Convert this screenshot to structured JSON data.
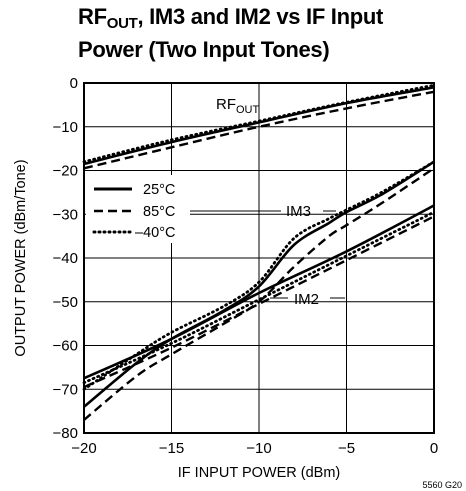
{
  "title": {
    "prefix": "RF",
    "sub": "OUT",
    "line1_rest": ", IM3 and IM2 vs IF Input",
    "line2": "Power (Two Input Tones)"
  },
  "figure_code": "5560 G20",
  "chart_data": {
    "type": "line",
    "xlabel": "IF INPUT POWER (dBm)",
    "ylabel": "OUTPUT POWER (dBm/Tone)",
    "xlim": [
      -20,
      0
    ],
    "ylim": [
      -80,
      0
    ],
    "x_ticks": [
      -20,
      -15,
      -10,
      -5,
      0
    ],
    "y_ticks": [
      0,
      -10,
      -20,
      -30,
      -40,
      -50,
      -60,
      -70,
      -80
    ],
    "grid": true,
    "legend": {
      "placement": "left-middle",
      "entries": [
        {
          "label": "25°C",
          "style": "solid"
        },
        {
          "label": "85°C",
          "style": "dashed"
        },
        {
          "label": "–40°C",
          "style": "dotted"
        }
      ]
    },
    "annotations": [
      {
        "text_prefix": "RF",
        "text_sub": "OUT"
      },
      {
        "text": "IM3"
      },
      {
        "text": "IM2"
      }
    ],
    "series": [
      {
        "group": "RFOUT",
        "temp": "25°C",
        "style": "solid",
        "x": [
          -20,
          -15,
          -10,
          -5,
          0
        ],
        "y": [
          -18.5,
          -13.5,
          -9,
          -4.6,
          -1
        ]
      },
      {
        "group": "RFOUT",
        "temp": "85°C",
        "style": "dashed",
        "x": [
          -20,
          -15,
          -10,
          -5,
          0
        ],
        "y": [
          -19.5,
          -14.7,
          -10,
          -5.8,
          -2
        ]
      },
      {
        "group": "RFOUT",
        "temp": "–40°C",
        "style": "dotted",
        "x": [
          -20,
          -15,
          -10,
          -5,
          0
        ],
        "y": [
          -18,
          -13,
          -8.7,
          -4.4,
          -0.5
        ]
      },
      {
        "group": "IM3",
        "temp": "25°C",
        "style": "solid",
        "x": [
          -20,
          -17,
          -15,
          -12,
          -10,
          -8,
          -6,
          -5,
          -3,
          0
        ],
        "y": [
          -74,
          -64,
          -58.5,
          -52,
          -46.5,
          -37,
          -32,
          -29.5,
          -25.5,
          -18
        ]
      },
      {
        "group": "IM3",
        "temp": "85°C",
        "style": "dashed",
        "x": [
          -20,
          -17,
          -15,
          -12,
          -10,
          -8,
          -6,
          -5,
          -3,
          0
        ],
        "y": [
          -77,
          -67,
          -62,
          -55,
          -50,
          -42,
          -35,
          -32.5,
          -27.5,
          -19.5
        ]
      },
      {
        "group": "IM3",
        "temp": "–40°C",
        "style": "dotted",
        "x": [
          -20,
          -17,
          -15,
          -12,
          -10,
          -8,
          -6,
          -5,
          -3,
          0
        ],
        "y": [
          -70,
          -62,
          -57,
          -51,
          -45.5,
          -35.5,
          -31,
          -29,
          -25,
          -18
        ]
      },
      {
        "group": "IM2",
        "temp": "25°C",
        "style": "solid",
        "x": [
          -20,
          -15,
          -10,
          -5,
          0
        ],
        "y": [
          -67.5,
          -58.5,
          -48,
          -38.5,
          -28
        ]
      },
      {
        "group": "IM2",
        "temp": "85°C",
        "style": "dashed",
        "x": [
          -20,
          -15,
          -10,
          -5,
          0
        ],
        "y": [
          -69.5,
          -60.5,
          -50.5,
          -40.5,
          -30.5
        ]
      },
      {
        "group": "IM2",
        "temp": "–40°C",
        "style": "dotted",
        "x": [
          -20,
          -15,
          -10,
          -5,
          0
        ],
        "y": [
          -68.5,
          -59.5,
          -49.5,
          -39.5,
          -29.5
        ]
      }
    ]
  }
}
